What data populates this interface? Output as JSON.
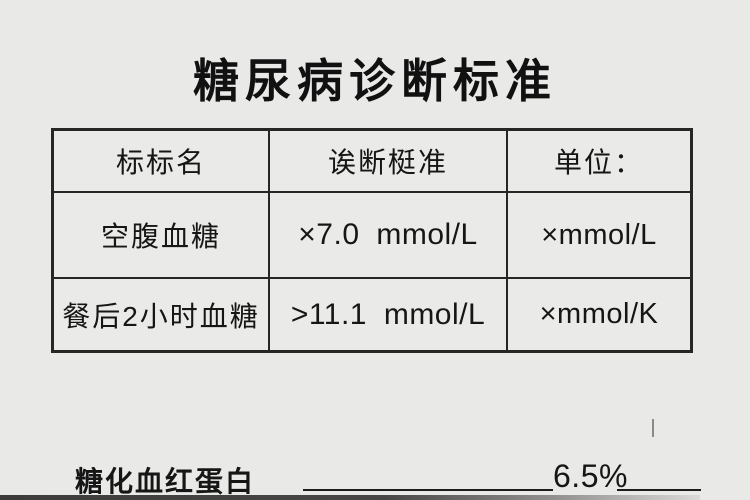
{
  "page": {
    "background": "#e9e9e7",
    "text_color": "#161616",
    "border_color": "#262626"
  },
  "title": "糖尿病诊断标准",
  "table": {
    "headers": [
      "标标名",
      "诶断梃准",
      "单位："
    ],
    "rows": [
      {
        "name": "空腹血糖",
        "value": "×7.0 mmol/L",
        "unit": "×mmol/L"
      },
      {
        "name": "餐后2小时血糖",
        "value": ">11.1 mmol/L",
        "unit": "×mmol/K"
      }
    ]
  },
  "footer": {
    "label": "糖化血红蛋白",
    "value": "6.5%"
  }
}
